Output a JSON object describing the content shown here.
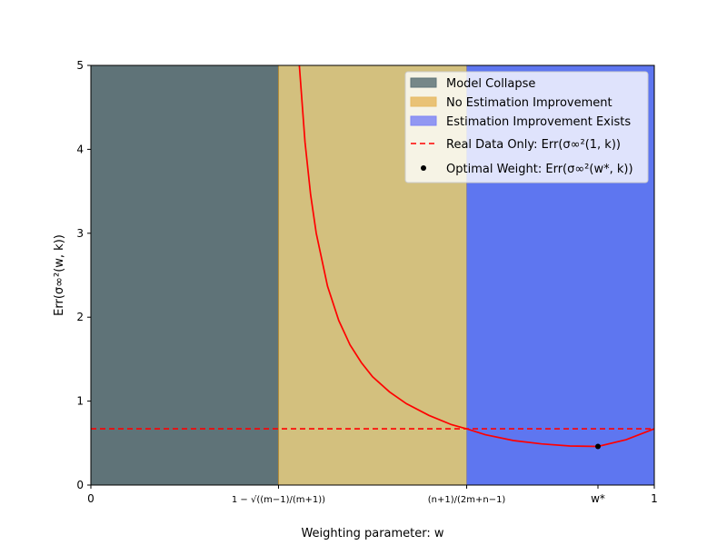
{
  "chart_data": {
    "type": "line",
    "title": "",
    "xlabel": "Weighting parameter: w",
    "ylabel": "Err(σ∞²(w, k))",
    "xlim": [
      0,
      1
    ],
    "ylim": [
      0,
      5
    ],
    "grid": false,
    "legend_position": "top-right",
    "xticks": [
      {
        "value": 0,
        "label": "0"
      },
      {
        "value": 0.333,
        "label": "1 − √((m−1)/(m+1))"
      },
      {
        "value": 0.667,
        "label": "(n+1)/(2m+n−1)"
      },
      {
        "value": 0.9,
        "label": "w*"
      },
      {
        "value": 1,
        "label": "1"
      }
    ],
    "yticks": [
      0,
      1,
      2,
      3,
      4,
      5
    ],
    "regions": [
      {
        "name": "Model Collapse",
        "x0": 0,
        "x1": 0.333,
        "color": "#5f7378"
      },
      {
        "name": "No Estimation Improvement",
        "x0": 0.333,
        "x1": 0.667,
        "color": "#d3c07e"
      },
      {
        "name": "Estimation Improvement Exists",
        "x0": 0.667,
        "x1": 1.0,
        "color": "#5e76f0"
      }
    ],
    "curve": {
      "color": "#ff0000",
      "x": [
        0.37,
        0.38,
        0.39,
        0.4,
        0.42,
        0.44,
        0.46,
        0.48,
        0.5,
        0.53,
        0.56,
        0.6,
        0.64,
        0.667,
        0.7,
        0.75,
        0.8,
        0.85,
        0.9,
        0.95,
        1.0
      ],
      "y": [
        5.0,
        4.09,
        3.46,
        3.0,
        2.37,
        1.96,
        1.67,
        1.46,
        1.29,
        1.11,
        0.97,
        0.83,
        0.72,
        0.67,
        0.6,
        0.53,
        0.49,
        0.465,
        0.46,
        0.54,
        0.67
      ]
    },
    "reference_line": {
      "name": "Real Data Only: Err(σ∞²(1, k))",
      "y": 0.67,
      "color": "#ff0000",
      "style": "dashed"
    },
    "optimal_point": {
      "name": "Optimal Weight: Err(σ∞²(w*, k))",
      "x": 0.9,
      "y": 0.46,
      "color": "#000000"
    },
    "legend": [
      {
        "label": "Model Collapse",
        "type": "patch",
        "color": "#5f7378"
      },
      {
        "label": "No Estimation Improvement",
        "type": "patch",
        "color": "#e6b963"
      },
      {
        "label": "Estimation Improvement Exists",
        "type": "patch",
        "color": "#7f86f5"
      },
      {
        "label": "Real Data Only: Err(σ∞²(1, k))",
        "type": "dashed",
        "color": "#ff0000"
      },
      {
        "label": "Optimal Weight: Err(σ∞²(w*, k))",
        "type": "dot",
        "color": "#000000"
      }
    ]
  }
}
